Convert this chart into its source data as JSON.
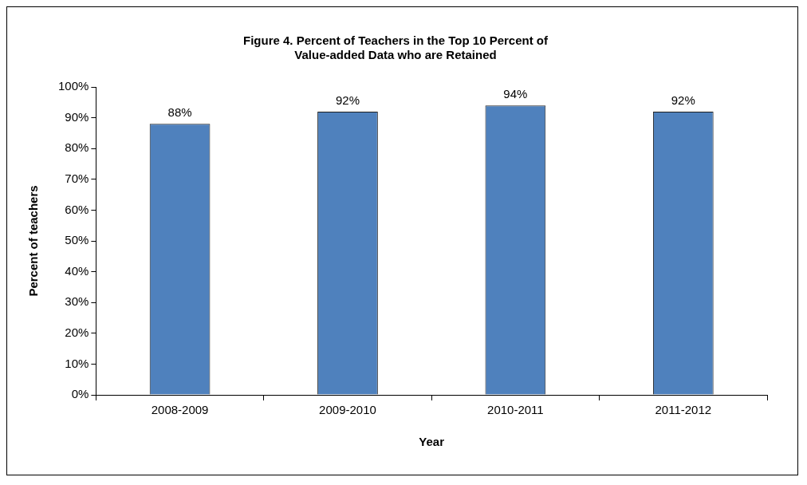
{
  "chart_data": {
    "type": "bar",
    "title": "Figure 4. Percent of Teachers in the Top 10 Percent of\nValue-added Data who are Retained",
    "xlabel": "Year",
    "ylabel": "Percent of teachers",
    "categories": [
      "2008-2009",
      "2009-2010",
      "2010-2011",
      "2011-2012"
    ],
    "values": [
      88,
      92,
      94,
      92
    ],
    "value_labels": [
      "88%",
      "92%",
      "94%",
      "92%"
    ],
    "color": "#4f81bd",
    "ylim": [
      0,
      100
    ],
    "yticks": [
      {
        "value": 0,
        "label": "0%"
      },
      {
        "value": 10,
        "label": "10%"
      },
      {
        "value": 20,
        "label": "20%"
      },
      {
        "value": 30,
        "label": "30%"
      },
      {
        "value": 40,
        "label": "40%"
      },
      {
        "value": 50,
        "label": "50%"
      },
      {
        "value": 60,
        "label": "60%"
      },
      {
        "value": 70,
        "label": "70%"
      },
      {
        "value": 80,
        "label": "80%"
      },
      {
        "value": 90,
        "label": "90%"
      },
      {
        "value": 100,
        "label": "100%"
      }
    ],
    "grid": false,
    "legend": false
  }
}
